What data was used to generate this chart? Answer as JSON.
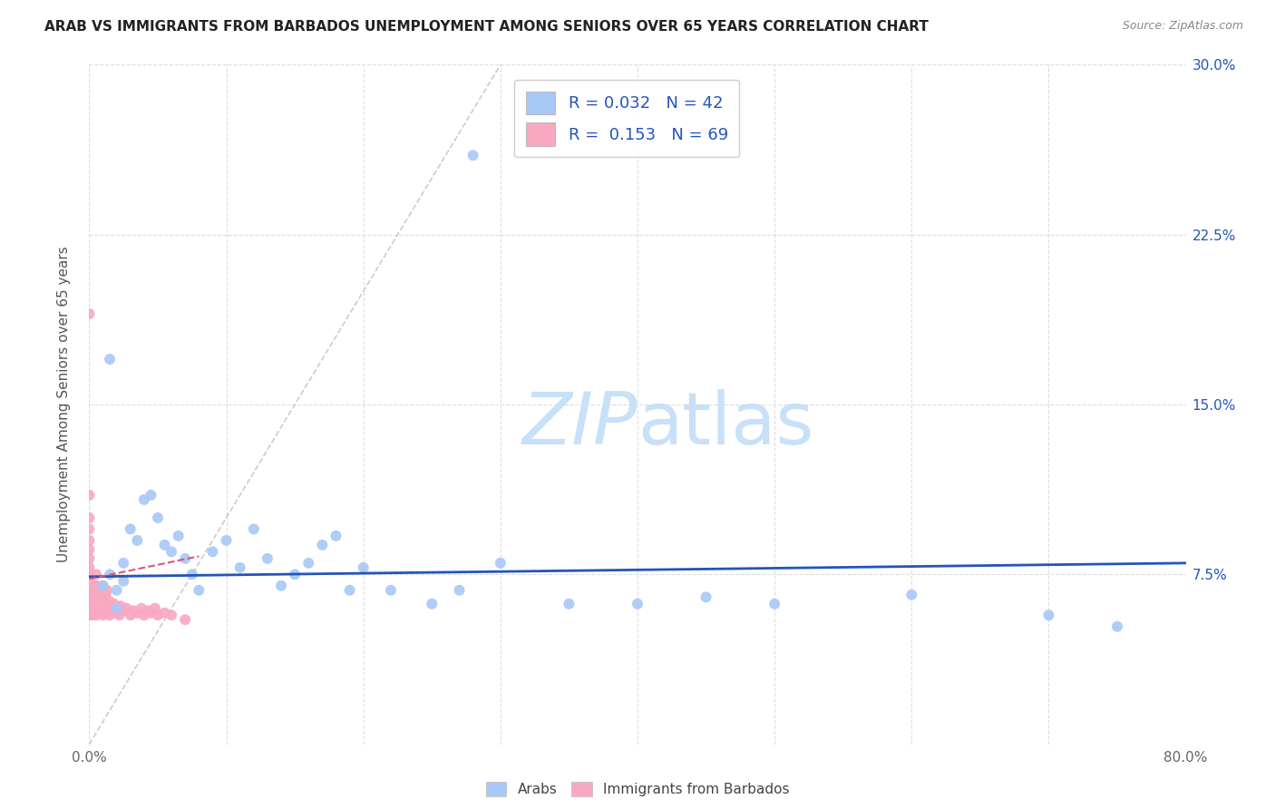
{
  "title": "ARAB VS IMMIGRANTS FROM BARBADOS UNEMPLOYMENT AMONG SENIORS OVER 65 YEARS CORRELATION CHART",
  "source": "Source: ZipAtlas.com",
  "ylabel": "Unemployment Among Seniors over 65 years",
  "xlim": [
    0,
    0.8
  ],
  "ylim": [
    0,
    0.3
  ],
  "arab_R": 0.032,
  "arab_N": 42,
  "barbados_R": 0.153,
  "barbados_N": 69,
  "arab_color": "#a8c8f8",
  "barbados_color": "#f8a8c0",
  "arab_line_color": "#2255bb",
  "barbados_line_color": "#dd5577",
  "diag_color": "#cccccc",
  "right_tick_color": "#2255bb",
  "watermark_color": "#c8e0f8",
  "arab_x": [
    0.01,
    0.015,
    0.02,
    0.025,
    0.025,
    0.03,
    0.035,
    0.04,
    0.045,
    0.05,
    0.055,
    0.06,
    0.065,
    0.07,
    0.075,
    0.08,
    0.09,
    0.1,
    0.11,
    0.12,
    0.13,
    0.14,
    0.15,
    0.16,
    0.17,
    0.18,
    0.19,
    0.2,
    0.22,
    0.25,
    0.27,
    0.28,
    0.3,
    0.35,
    0.4,
    0.45,
    0.5,
    0.6,
    0.7,
    0.75,
    0.015,
    0.02
  ],
  "arab_y": [
    0.07,
    0.075,
    0.068,
    0.08,
    0.072,
    0.095,
    0.09,
    0.108,
    0.11,
    0.1,
    0.088,
    0.085,
    0.092,
    0.082,
    0.075,
    0.068,
    0.085,
    0.09,
    0.078,
    0.095,
    0.082,
    0.07,
    0.075,
    0.08,
    0.088,
    0.092,
    0.068,
    0.078,
    0.068,
    0.062,
    0.068,
    0.26,
    0.08,
    0.062,
    0.062,
    0.065,
    0.062,
    0.066,
    0.057,
    0.052,
    0.17,
    0.06
  ],
  "barbados_x": [
    0.0,
    0.0,
    0.0,
    0.0,
    0.0,
    0.0,
    0.0,
    0.0,
    0.0,
    0.0,
    0.0,
    0.0,
    0.0,
    0.0,
    0.0,
    0.002,
    0.002,
    0.003,
    0.003,
    0.004,
    0.004,
    0.005,
    0.005,
    0.005,
    0.005,
    0.005,
    0.006,
    0.006,
    0.007,
    0.007,
    0.008,
    0.008,
    0.009,
    0.009,
    0.01,
    0.01,
    0.01,
    0.01,
    0.011,
    0.011,
    0.012,
    0.012,
    0.013,
    0.013,
    0.014,
    0.015,
    0.015,
    0.016,
    0.017,
    0.018,
    0.019,
    0.02,
    0.021,
    0.022,
    0.023,
    0.025,
    0.027,
    0.03,
    0.032,
    0.035,
    0.038,
    0.04,
    0.043,
    0.045,
    0.048,
    0.05,
    0.055,
    0.06,
    0.07
  ],
  "barbados_y": [
    0.057,
    0.06,
    0.063,
    0.066,
    0.069,
    0.072,
    0.075,
    0.078,
    0.082,
    0.086,
    0.09,
    0.095,
    0.1,
    0.11,
    0.19,
    0.057,
    0.063,
    0.058,
    0.065,
    0.06,
    0.07,
    0.057,
    0.06,
    0.065,
    0.07,
    0.075,
    0.058,
    0.065,
    0.059,
    0.066,
    0.06,
    0.068,
    0.061,
    0.069,
    0.057,
    0.06,
    0.065,
    0.07,
    0.058,
    0.065,
    0.059,
    0.066,
    0.06,
    0.068,
    0.061,
    0.057,
    0.063,
    0.059,
    0.06,
    0.062,
    0.059,
    0.058,
    0.06,
    0.057,
    0.061,
    0.059,
    0.06,
    0.057,
    0.059,
    0.058,
    0.06,
    0.057,
    0.059,
    0.058,
    0.06,
    0.057,
    0.058,
    0.057,
    0.055
  ],
  "arab_trend_x": [
    0.0,
    0.8
  ],
  "arab_trend_y_start": 0.074,
  "arab_trend_y_end": 0.08,
  "barbados_trend_x": [
    0.0,
    0.08
  ],
  "barbados_trend_y_start": 0.073,
  "barbados_trend_y_end": 0.083
}
